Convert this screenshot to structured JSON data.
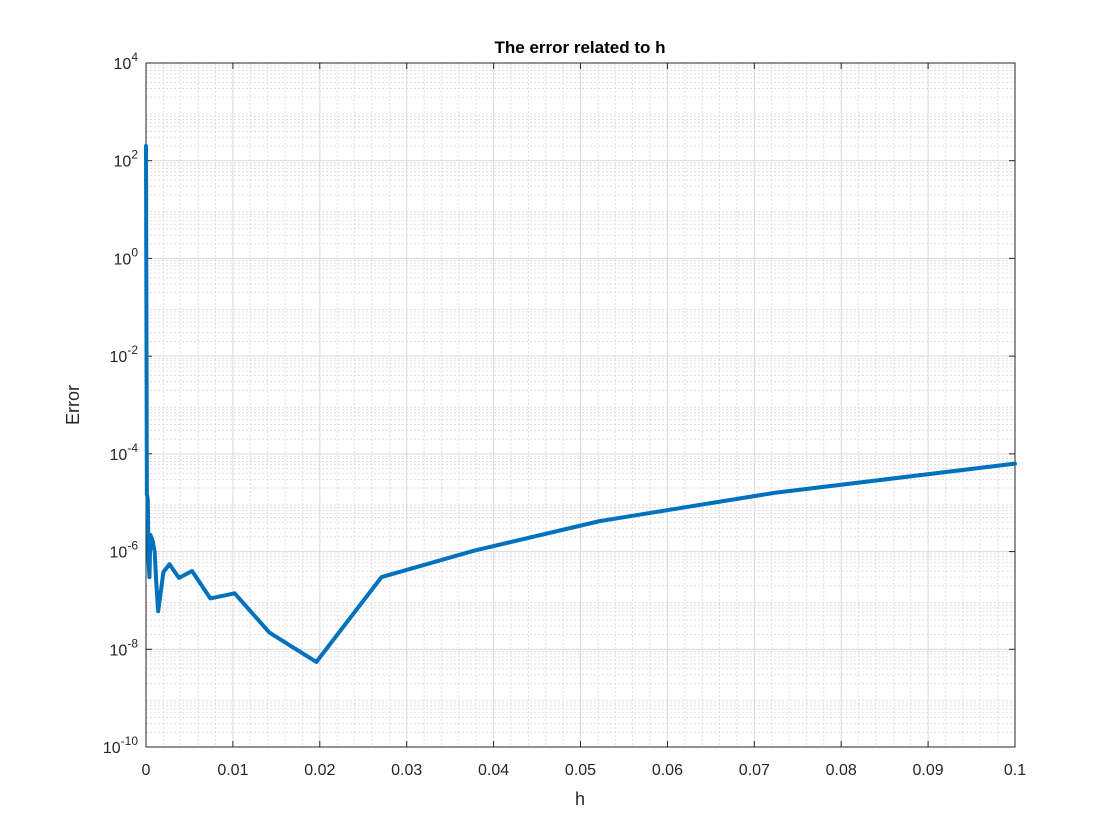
{
  "chart_data": {
    "type": "line",
    "title": "The error related to h",
    "xlabel": "h",
    "ylabel": "Error",
    "xscale": "linear",
    "yscale": "log",
    "xlim": [
      0,
      0.1
    ],
    "ylim": [
      1e-10,
      10000
    ],
    "grid": true,
    "minor_grid": true,
    "legend": "none",
    "x_ticks": [
      0,
      0.01,
      0.02,
      0.03,
      0.04,
      0.05,
      0.06,
      0.07,
      0.08,
      0.09,
      0.1
    ],
    "x_tick_labels": [
      "0",
      "0.01",
      "0.02",
      "0.03",
      "0.04",
      "0.05",
      "0.06",
      "0.07",
      "0.08",
      "0.09",
      "0.1"
    ],
    "y_ticks": [
      {
        "value": 1e-10,
        "base": "10",
        "exp": "-10"
      },
      {
        "value": 1e-08,
        "base": "10",
        "exp": "-8"
      },
      {
        "value": 1e-06,
        "base": "10",
        "exp": "-6"
      },
      {
        "value": 0.0001,
        "base": "10",
        "exp": "-4"
      },
      {
        "value": 0.01,
        "base": "10",
        "exp": "-2"
      },
      {
        "value": 1,
        "base": "10",
        "exp": "0"
      },
      {
        "value": 100,
        "base": "10",
        "exp": "2"
      },
      {
        "value": 10000,
        "base": "10",
        "exp": "4"
      }
    ],
    "series": [
      {
        "color": "#0072bd",
        "x": [
          0.0,
          0.0001,
          0.0002,
          0.0003,
          0.0004,
          0.0005,
          0.0006,
          0.0007,
          0.0008,
          0.0009,
          0.001,
          0.0012,
          0.0014,
          0.0017,
          0.002,
          0.0027,
          0.0038,
          0.0053,
          0.0074,
          0.0102,
          0.0142,
          0.0196,
          0.0271,
          0.0378,
          0.0522,
          0.0724,
          0.1
        ],
        "y": [
          200,
          1.5e-05,
          1.2e-05,
          6e-07,
          3e-07,
          2.2e-06,
          2e-06,
          1.8e-06,
          1.6e-06,
          1.2e-06,
          1e-06,
          2e-07,
          6e-08,
          1.5e-07,
          3.8e-07,
          5.5e-07,
          2.9e-07,
          4e-07,
          1.1e-07,
          1.4e-07,
          2.2e-08,
          5.5e-09,
          3e-07,
          1.05e-06,
          4.2e-06,
          1.6e-05,
          6.3e-05
        ]
      }
    ]
  }
}
